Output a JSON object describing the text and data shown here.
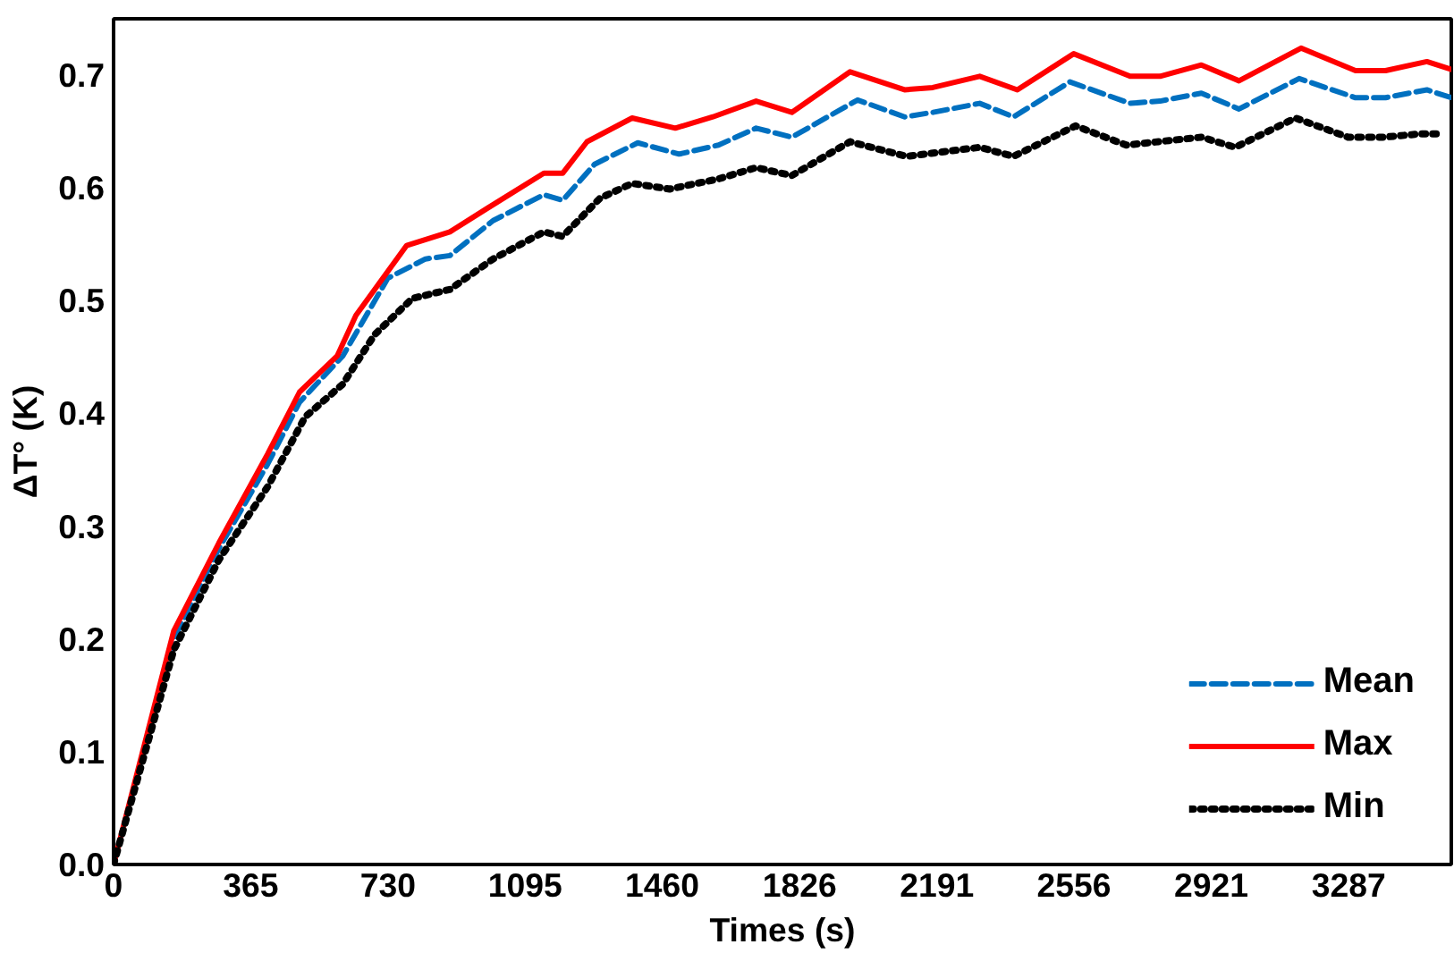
{
  "chart_data": {
    "type": "line",
    "xlabel": "Times (s)",
    "ylabel": "ΔT° (K)",
    "xlim": [
      0,
      3560
    ],
    "ylim": [
      0,
      0.75
    ],
    "xticks": [
      0,
      365,
      730,
      1095,
      1460,
      1826,
      2191,
      2556,
      2921,
      3287
    ],
    "yticks": [
      {
        "value": 0,
        "label": "0.0"
      },
      0.1,
      0.2,
      0.3,
      0.4,
      0.5,
      0.6,
      0.7
    ],
    "grid": false,
    "legend": "bottom right",
    "marker": "none",
    "series": [
      {
        "name": "Mean",
        "color": "#0070c0",
        "line_style": "dashed",
        "x": [
          0,
          160,
          280,
          410,
          495,
          610,
          730,
          830,
          895,
          1010,
          1145,
          1195,
          1280,
          1395,
          1505,
          1610,
          1710,
          1805,
          1980,
          2105,
          2180,
          2305,
          2395,
          2545,
          2705,
          2785,
          2895,
          2995,
          3155,
          3305,
          3385,
          3495,
          3560
        ],
        "values": [
          0,
          0.2,
          0.28,
          0.355,
          0.41,
          0.451,
          0.52,
          0.537,
          0.54,
          0.571,
          0.594,
          0.589,
          0.621,
          0.64,
          0.63,
          0.638,
          0.653,
          0.645,
          0.678,
          0.663,
          0.667,
          0.675,
          0.663,
          0.694,
          0.675,
          0.677,
          0.684,
          0.67,
          0.697,
          0.68,
          0.68,
          0.687,
          0.68
        ]
      },
      {
        "name": "Max",
        "color": "#ff0000",
        "line_style": "solid",
        "x": [
          0,
          160,
          280,
          410,
          495,
          595,
          645,
          780,
          895,
          995,
          1145,
          1195,
          1260,
          1380,
          1495,
          1595,
          1710,
          1805,
          1960,
          2105,
          2180,
          2305,
          2405,
          2555,
          2705,
          2785,
          2895,
          2995,
          3160,
          3305,
          3385,
          3495,
          3560
        ],
        "values": [
          0,
          0.207,
          0.285,
          0.364,
          0.419,
          0.451,
          0.487,
          0.549,
          0.561,
          0.582,
          0.613,
          0.613,
          0.641,
          0.662,
          0.653,
          0.663,
          0.677,
          0.667,
          0.703,
          0.687,
          0.689,
          0.699,
          0.687,
          0.719,
          0.699,
          0.699,
          0.709,
          0.695,
          0.724,
          0.704,
          0.704,
          0.712,
          0.705
        ]
      },
      {
        "name": "Min",
        "color": "#000000",
        "line_style": "dotted",
        "x": [
          0,
          160,
          280,
          410,
          510,
          610,
          695,
          795,
          895,
          1010,
          1145,
          1195,
          1295,
          1380,
          1480,
          1610,
          1710,
          1805,
          1960,
          2110,
          2305,
          2395,
          2560,
          2695,
          2895,
          2985,
          3145,
          3285,
          3380,
          3480,
          3530
        ],
        "values": [
          0,
          0.19,
          0.27,
          0.335,
          0.397,
          0.426,
          0.47,
          0.502,
          0.51,
          0.537,
          0.561,
          0.557,
          0.591,
          0.604,
          0.599,
          0.608,
          0.618,
          0.611,
          0.641,
          0.628,
          0.636,
          0.628,
          0.655,
          0.638,
          0.645,
          0.636,
          0.662,
          0.645,
          0.645,
          0.648,
          0.648
        ]
      }
    ]
  }
}
